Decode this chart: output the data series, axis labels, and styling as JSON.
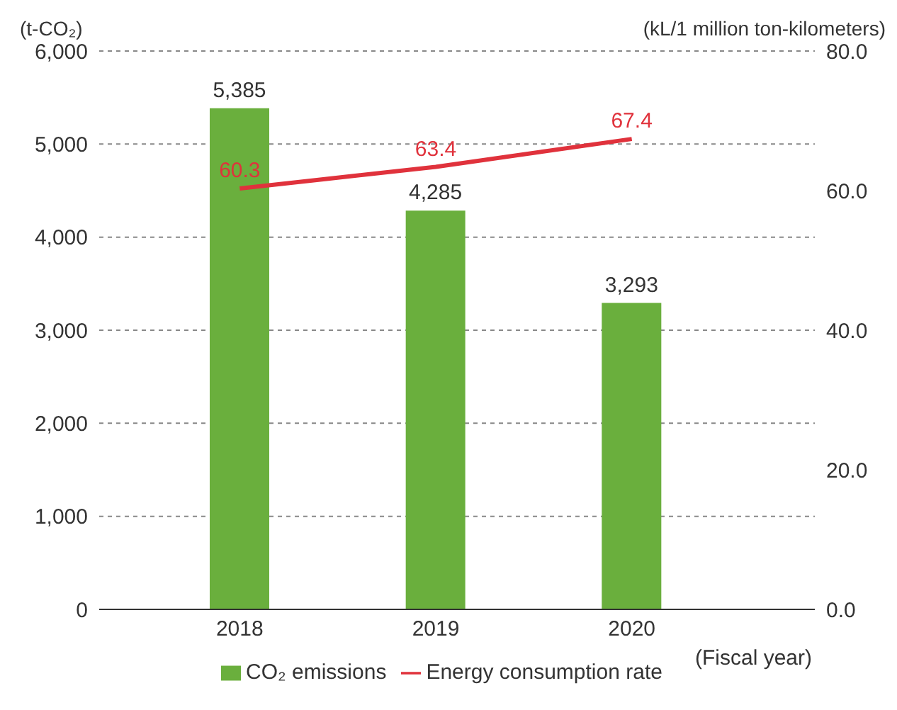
{
  "chart_data": {
    "type": "bar",
    "categories": [
      "2018",
      "2019",
      "2020"
    ],
    "series": [
      {
        "name": "CO₂ emissions",
        "color": "#6aaf3d",
        "values": [
          5385,
          4285,
          3293
        ],
        "value_labels": [
          "5,385",
          "4,285",
          "3,293"
        ]
      },
      {
        "name": "Energy consumption rate",
        "type": "line",
        "axis": "y2",
        "color": "#e0323c",
        "values": [
          60.3,
          63.4,
          67.4
        ],
        "value_labels": [
          "60.3",
          "63.4",
          "67.4"
        ]
      }
    ],
    "ylabel": "(t-CO₂)",
    "y2label": "(kL/1 million ton-kilometers)",
    "xlabel": "(Fiscal year)",
    "ylim": [
      0,
      6000
    ],
    "yticks": [
      0,
      {
        "value": 1000,
        "label": "1,000"
      },
      {
        "value": 2000,
        "label": "2,000"
      },
      {
        "value": 3000,
        "label": "3,000"
      },
      {
        "value": 4000,
        "label": "4,000"
      },
      {
        "value": 5000,
        "label": "5,000"
      },
      {
        "value": 6000,
        "label": "6,000"
      }
    ],
    "y2lim": [
      0,
      80
    ],
    "y2ticks": [
      {
        "value": 0,
        "label": "0.0"
      },
      {
        "value": 20,
        "label": "20.0"
      },
      {
        "value": 40,
        "label": "40.0"
      },
      {
        "value": 60,
        "label": "60.0"
      },
      {
        "value": 80,
        "label": "80.0"
      }
    ],
    "grid": "y",
    "legend": "bottom",
    "marker": "none"
  }
}
